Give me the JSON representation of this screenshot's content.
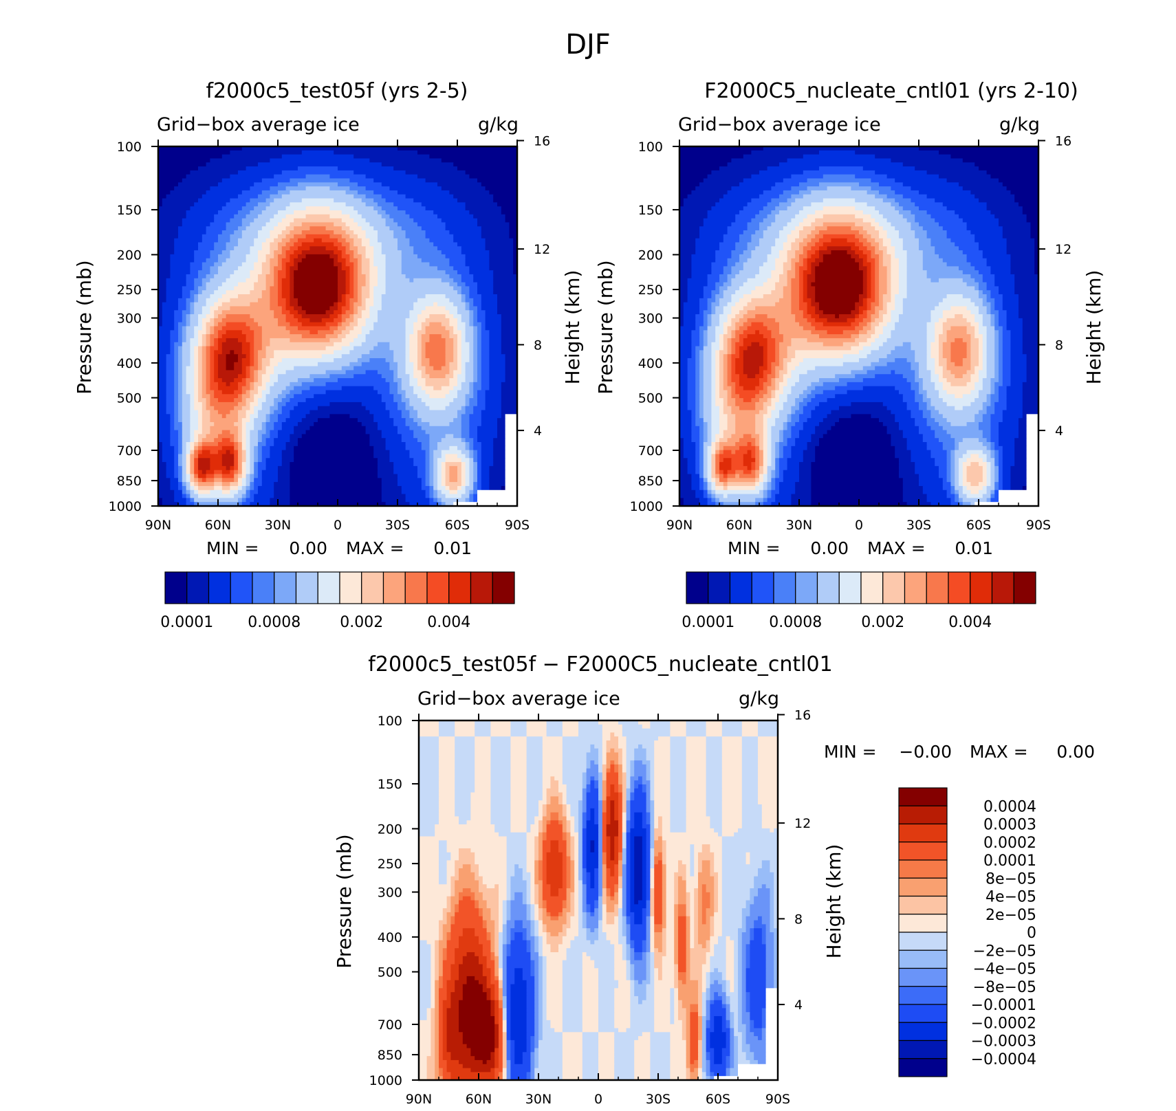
{
  "figure": {
    "title": "DJF"
  },
  "colors": {
    "absolute_palette": [
      "#00008c",
      "#0018b4",
      "#0030e0",
      "#2054f8",
      "#4a80f8",
      "#7ca8f8",
      "#b0ccf8",
      "#dceaf8",
      "#fde8d8",
      "#fcc8ac",
      "#fca47c",
      "#f8784c",
      "#f44c24",
      "#e02c08",
      "#b81808",
      "#840000"
    ],
    "difference_palette": [
      "#00008c",
      "#0018b4",
      "#0030e0",
      "#1e4cf4",
      "#3c6cf8",
      "#6a94f8",
      "#98bcf8",
      "#c6daf8",
      "#fde8d8",
      "#fcc4a4",
      "#f9a070",
      "#f67a48",
      "#f25428",
      "#e03a10",
      "#b81c04",
      "#840000"
    ]
  },
  "chart_data": [
    {
      "type": "heatmap",
      "title": "f2000c5_test05f (yrs 2-5)",
      "subtitle_left": "Grid−box average ice",
      "subtitle_right": "g/kg",
      "xlabel": "",
      "ylabel": "Pressure (mb)",
      "ylabel_right": "Height (km)",
      "x_ticks": [
        "90N",
        "60N",
        "30N",
        "0",
        "30S",
        "60S",
        "90S"
      ],
      "x_values": [
        90,
        60,
        30,
        0,
        -30,
        -60,
        -90
      ],
      "y_ticks": [
        100,
        150,
        200,
        250,
        300,
        400,
        500,
        700,
        850,
        1000
      ],
      "y_right_ticks": [
        16,
        12,
        8,
        4
      ],
      "xlim": [
        90,
        -90
      ],
      "ylim": [
        1000,
        100
      ],
      "min_label": "MIN =",
      "min_value": "0.00",
      "max_label": "MAX =",
      "max_value": "0.01",
      "colorbar": {
        "orientation": "horizontal",
        "labels": [
          "0.0001",
          "0.0008",
          "0.002",
          "0.004"
        ],
        "label_edges": [
          1,
          5,
          9,
          13
        ]
      },
      "features": [
        {
          "lat": 10,
          "p": 250,
          "value": 0.0062
        },
        {
          "lat": 52,
          "p": 380,
          "value": 0.0036
        },
        {
          "lat": -50,
          "p": 370,
          "value": 0.0031
        },
        {
          "lat": 68,
          "p": 780,
          "value": 0.0044
        },
        {
          "lat": 54,
          "p": 760,
          "value": 0.0046
        },
        {
          "lat": -58,
          "p": 820,
          "value": 0.003
        },
        {
          "lat": 60,
          "p": 520,
          "value": 0.0019
        }
      ]
    },
    {
      "type": "heatmap",
      "title": "F2000C5_nucleate_cntl01 (yrs 2-10)",
      "subtitle_left": "Grid−box average ice",
      "subtitle_right": "g/kg",
      "xlabel": "",
      "ylabel": "Pressure (mb)",
      "ylabel_right": "Height (km)",
      "x_ticks": [
        "90N",
        "60N",
        "30N",
        "0",
        "30S",
        "60S",
        "90S"
      ],
      "x_values": [
        90,
        60,
        30,
        0,
        -30,
        -60,
        -90
      ],
      "y_ticks": [
        100,
        150,
        200,
        250,
        300,
        400,
        500,
        700,
        850,
        1000
      ],
      "y_right_ticks": [
        16,
        12,
        8,
        4
      ],
      "xlim": [
        90,
        -90
      ],
      "ylim": [
        1000,
        100
      ],
      "min_label": "MIN =",
      "min_value": "0.00",
      "max_label": "MAX =",
      "max_value": "0.01",
      "colorbar": {
        "orientation": "horizontal",
        "labels": [
          "0.0001",
          "0.0008",
          "0.002",
          "0.004"
        ],
        "label_edges": [
          1,
          5,
          9,
          13
        ]
      },
      "features": [
        {
          "lat": 10,
          "p": 250,
          "value": 0.0064
        },
        {
          "lat": 52,
          "p": 380,
          "value": 0.0034
        },
        {
          "lat": -50,
          "p": 370,
          "value": 0.0029
        },
        {
          "lat": 68,
          "p": 780,
          "value": 0.0038
        },
        {
          "lat": 54,
          "p": 760,
          "value": 0.004
        },
        {
          "lat": -58,
          "p": 820,
          "value": 0.0028
        },
        {
          "lat": 60,
          "p": 520,
          "value": 0.0018
        }
      ]
    },
    {
      "type": "heatmap",
      "title": "f2000c5_test05f − F2000C5_nucleate_cntl01",
      "subtitle_left": "Grid−box average ice",
      "subtitle_right": "g/kg",
      "xlabel": "",
      "ylabel": "Pressure (mb)",
      "ylabel_right": "Height (km)",
      "x_ticks": [
        "90N",
        "60N",
        "30N",
        "0",
        "30S",
        "60S",
        "90S"
      ],
      "x_values": [
        90,
        60,
        30,
        0,
        -30,
        -60,
        -90
      ],
      "y_ticks": [
        100,
        150,
        200,
        250,
        300,
        400,
        500,
        700,
        850,
        1000
      ],
      "y_right_ticks": [
        16,
        12,
        8,
        4
      ],
      "xlim": [
        90,
        -90
      ],
      "ylim": [
        1000,
        100
      ],
      "min_label": "MIN =",
      "min_value": "−0.00",
      "max_label": "MAX =",
      "max_value": "0.00",
      "colorbar": {
        "orientation": "vertical",
        "labels": [
          "0.0004",
          "0.0003",
          "0.0002",
          "0.0001",
          "8e−05",
          "4e−05",
          "2e−05",
          "0",
          "−2e−05",
          "−4e−05",
          "−8e−05",
          "−0.0001",
          "−0.0002",
          "−0.0003",
          "−0.0004"
        ]
      },
      "features": [
        {
          "lat": 65,
          "p": 620,
          "value": 0.00045
        },
        {
          "lat": 55,
          "p": 750,
          "value": 0.0004
        },
        {
          "lat": 75,
          "p": 780,
          "value": 0.0002
        },
        {
          "lat": 40,
          "p": 650,
          "value": -0.0003
        },
        {
          "lat": 22,
          "p": 260,
          "value": 0.0003
        },
        {
          "lat": 3,
          "p": 220,
          "value": -0.0003
        },
        {
          "lat": -7,
          "p": 200,
          "value": 0.0004
        },
        {
          "lat": -20,
          "p": 260,
          "value": -0.0004
        },
        {
          "lat": -30,
          "p": 300,
          "value": 0.0002
        },
        {
          "lat": -42,
          "p": 430,
          "value": 0.00015
        },
        {
          "lat": -53,
          "p": 320,
          "value": 0.0001
        },
        {
          "lat": -60,
          "p": 780,
          "value": -0.0003
        },
        {
          "lat": -48,
          "p": 780,
          "value": 0.00015
        },
        {
          "lat": -80,
          "p": 520,
          "value": -0.00015
        }
      ]
    }
  ]
}
